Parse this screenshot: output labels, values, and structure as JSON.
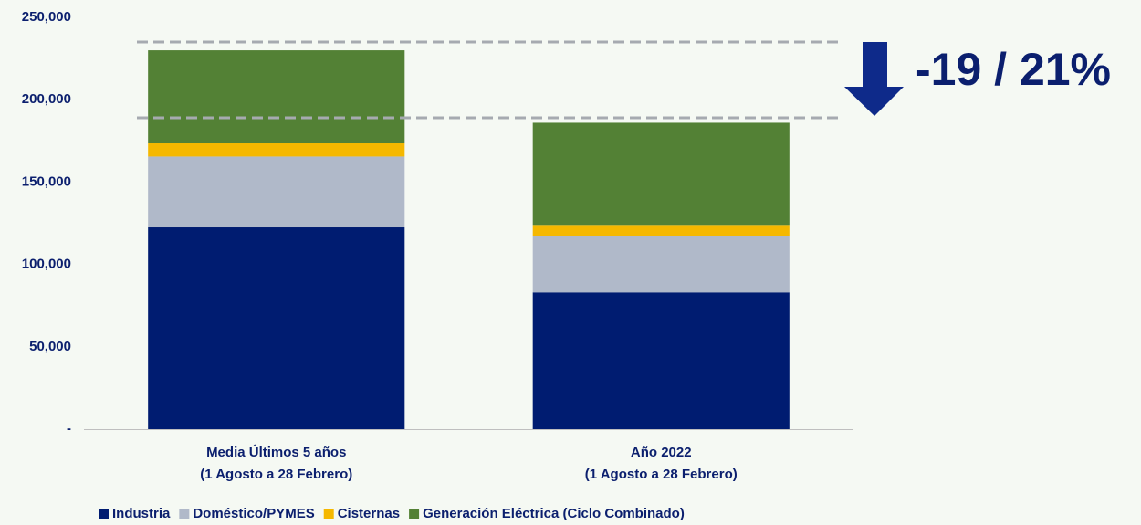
{
  "chart_data": {
    "type": "stacked_bar",
    "categories": [
      [
        "Media Últimos 5 años",
        "(1 Agosto a 28 Febrero)"
      ],
      [
        "Año 2022",
        "(1 Agosto a 28 Febrero)"
      ]
    ],
    "series": [
      {
        "name": "Industria",
        "color": "#001c71",
        "values": [
          122500,
          83000
        ]
      },
      {
        "name": "Doméstico/PYMES",
        "color": "#b0b9c9",
        "values": [
          43000,
          34500
        ]
      },
      {
        "name": "Cisternas",
        "color": "#f5b800",
        "values": [
          8000,
          6500
        ]
      },
      {
        "name": "Generación Eléctrica (Ciclo Combinado)",
        "color": "#538135",
        "values": [
          56500,
          62000
        ]
      }
    ],
    "ylim": [
      0,
      250000
    ],
    "yticks": [
      {
        "value": 0,
        "label": "-"
      },
      {
        "value": 50000,
        "label": "50,000"
      },
      {
        "value": 100000,
        "label": "100,000"
      },
      {
        "value": 150000,
        "label": "150,000"
      },
      {
        "value": 200000,
        "label": "200,000"
      },
      {
        "value": 250000,
        "label": "250,000"
      }
    ],
    "annotation": "-19 / 21%",
    "legend": "bottom"
  }
}
